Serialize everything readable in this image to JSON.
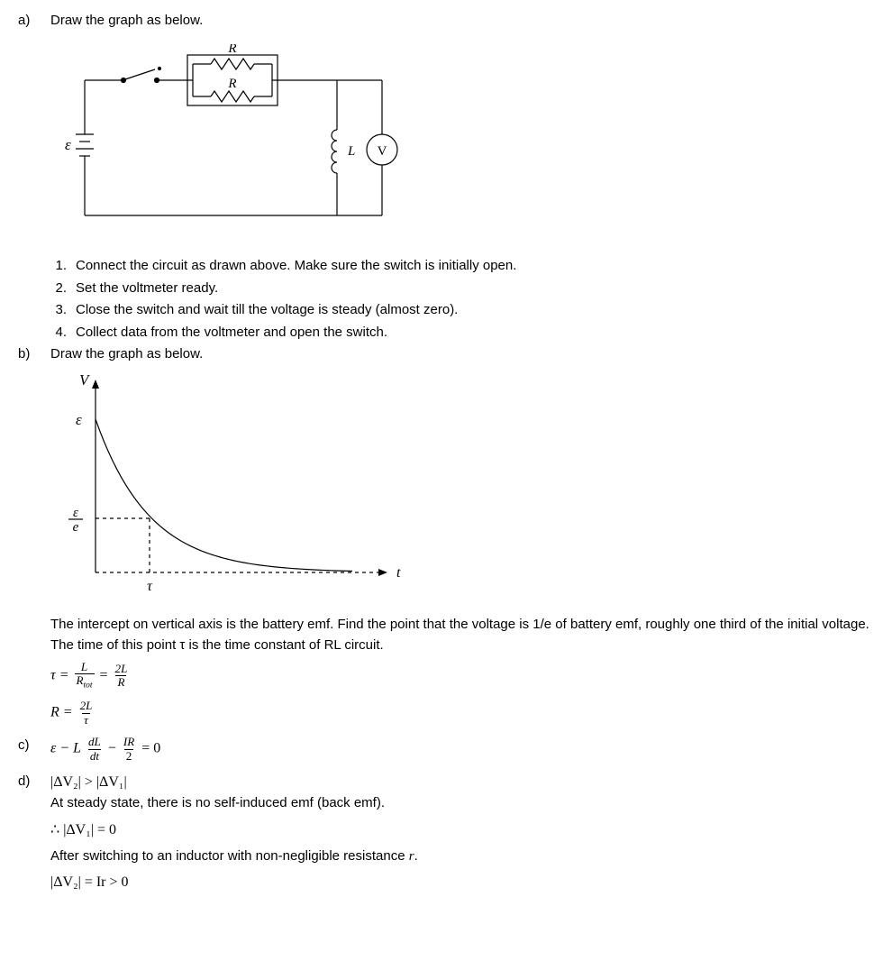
{
  "a": {
    "label": "a)",
    "intro": "Draw the graph as below.",
    "steps": [
      {
        "num": "1.",
        "text": "Connect the circuit as drawn above. Make sure the switch is initially open."
      },
      {
        "num": "2.",
        "text": "Set the voltmeter ready."
      },
      {
        "num": "3.",
        "text": "Close the switch and wait till the voltage is steady (almost zero)."
      },
      {
        "num": "4.",
        "text": "Collect data from the voltmeter and open the switch."
      }
    ],
    "circuit": {
      "labels": {
        "R1": "R",
        "R2": "R",
        "eps": "ε",
        "L": "L",
        "V": "V"
      },
      "colors": {
        "line": "#000000",
        "background": "#ffffff"
      },
      "lineWidth": 1.2
    }
  },
  "b": {
    "label": "b)",
    "intro": "Draw the graph as below.",
    "explain": "The intercept on vertical axis is the battery emf. Find the point that the voltage is 1/e of battery emf, roughly one third of the initial voltage. The time of this point  τ  is the time constant of RL circuit.",
    "graph": {
      "type": "line",
      "ylabel": "V",
      "xlabel": "t",
      "yticks": {
        "eps": "ε",
        "eps_e_num": "ε",
        "eps_e_den": "e"
      },
      "xtick": "τ",
      "curve": [
        [
          0,
          0
        ],
        [
          5,
          55
        ],
        [
          10,
          88
        ],
        [
          18,
          110
        ],
        [
          30,
          128
        ],
        [
          45,
          140
        ],
        [
          70,
          150
        ],
        [
          100,
          156
        ],
        [
          140,
          160
        ],
        [
          200,
          163
        ],
        [
          285,
          166
        ]
      ],
      "colors": {
        "axis": "#000000",
        "curve": "#000000",
        "dashed": "#000000",
        "background": "#ffffff"
      },
      "lineWidth": 1.2,
      "axisArrowSize": 6,
      "yAxisHeight": 210,
      "xAxisWidth": 320,
      "epsY": 170,
      "epseY": 60,
      "tauX": 60
    },
    "eq1": {
      "lhs": "τ =",
      "f1n": "L",
      "f1d_txt": "R",
      "f1d_sub": "tot",
      "mid": "=",
      "f2n": "2L",
      "f2d": "R"
    },
    "eq2": {
      "lhs": "R =",
      "fn": "2L",
      "fd": "τ"
    }
  },
  "c": {
    "label": "c)",
    "eq": {
      "pre": "ε − L",
      "f1n": "dL",
      "f1d": "dt",
      "minus": "−",
      "f2n": "IR",
      "f2d": "2",
      "post": "= 0"
    }
  },
  "d": {
    "label": "d)",
    "line1": "|ΔV₂| > |ΔV₁|",
    "line2": "At steady state, there is no self-induced emf (back emf).",
    "line3_pre": "∴  ",
    "line3": "|ΔV₁| = 0",
    "line4_a": "After switching to an inductor with non-negligible resistance  ",
    "line4_b": "r",
    "line4_c": ".",
    "line5": "|ΔV₂| = Ir > 0"
  }
}
